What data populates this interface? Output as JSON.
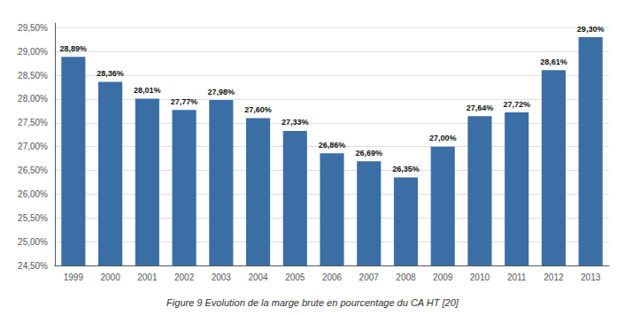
{
  "chart_data": {
    "type": "bar",
    "title": "Figure 9 Evolution de la marge brute en pourcentage du CA HT [20]",
    "categories": [
      "1999",
      "2000",
      "2001",
      "2002",
      "2003",
      "2004",
      "2005",
      "2006",
      "2007",
      "2008",
      "2009",
      "2010",
      "2011",
      "2012",
      "2013"
    ],
    "values": [
      28.89,
      28.36,
      28.01,
      27.77,
      27.98,
      27.6,
      27.33,
      26.86,
      26.69,
      26.35,
      27.0,
      27.64,
      27.72,
      28.61,
      29.3
    ],
    "value_labels": [
      "28,89%",
      "28,36%",
      "28,01%",
      "27,77%",
      "27,98%",
      "27,60%",
      "27,33%",
      "26,86%",
      "26,69%",
      "26,35%",
      "27,00%",
      "27,64%",
      "27,72%",
      "28,61%",
      "29,30%"
    ],
    "color": "#3a6ea5",
    "ylim": [
      24.5,
      29.6
    ],
    "yticks": [
      {
        "value": 24.5,
        "label": "24,50%"
      },
      {
        "value": 25.0,
        "label": "25,00%"
      },
      {
        "value": 25.5,
        "label": "25,50%"
      },
      {
        "value": 26.0,
        "label": "26,00%"
      },
      {
        "value": 26.5,
        "label": "26,50%"
      },
      {
        "value": 27.0,
        "label": "27,00%"
      },
      {
        "value": 27.5,
        "label": "27,50%"
      },
      {
        "value": 28.0,
        "label": "28,00%"
      },
      {
        "value": 28.5,
        "label": "28,50%"
      },
      {
        "value": 29.0,
        "label": "29,00%"
      },
      {
        "value": 29.5,
        "label": "29,50%"
      }
    ],
    "grid": true,
    "data_labels": true
  }
}
